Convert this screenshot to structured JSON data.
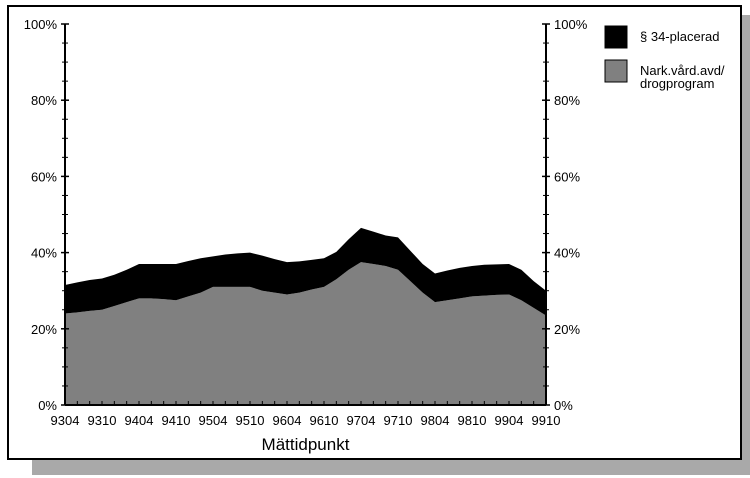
{
  "colors": {
    "paragraph34": "#000000",
    "narkvard": "#808080",
    "frame_shadow": "#a9a9a9"
  },
  "chart_data": {
    "type": "area",
    "stacked": true,
    "xlabel": "Mättidpunkt",
    "ylabel": "",
    "y_axis": "both-sides",
    "ylim": [
      0,
      100
    ],
    "y_ticks": [
      "0%",
      "20%",
      "40%",
      "60%",
      "80%",
      "100%"
    ],
    "x": [
      "9304",
      "9306",
      "9308",
      "9310",
      "9312",
      "9402",
      "9404",
      "9406",
      "9408",
      "9410",
      "9412",
      "9502",
      "9504",
      "9506",
      "9508",
      "9510",
      "9512",
      "9602",
      "9604",
      "9606",
      "9608",
      "9610",
      "9612",
      "9702",
      "9704",
      "9706",
      "9708",
      "9710",
      "9712",
      "9802",
      "9804",
      "9806",
      "9808",
      "9810",
      "9812",
      "9902",
      "9904",
      "9906",
      "9908",
      "9910"
    ],
    "x_tick_labels": [
      "9304",
      "9310",
      "9404",
      "9410",
      "9504",
      "9510",
      "9604",
      "9610",
      "9704",
      "9710",
      "9804",
      "9810",
      "9904",
      "9910"
    ],
    "series": [
      {
        "name": "Nark.vård.avd/ drogprogram",
        "color": "#808080",
        "values": [
          24,
          24.3,
          24.7,
          25,
          26,
          27,
          28,
          28,
          27.8,
          27.5,
          28.5,
          29.5,
          31,
          31,
          31,
          31,
          30,
          29.5,
          29,
          29.5,
          30.3,
          31,
          33,
          35.5,
          37.5,
          37,
          36.5,
          35.5,
          32.5,
          29.5,
          27,
          27.5,
          28,
          28.5,
          28.7,
          28.9,
          29,
          27.5,
          25.5,
          23.5
        ]
      },
      {
        "name": "§ 34-placerad",
        "color": "#000000",
        "values": [
          7.5,
          7.9,
          8.1,
          8.2,
          8.2,
          8.5,
          9,
          9,
          9.2,
          9.5,
          9.3,
          9,
          8,
          8.5,
          8.8,
          9,
          9.2,
          8.8,
          8.5,
          8.2,
          7.8,
          7.5,
          7.2,
          8,
          9,
          8.5,
          8,
          8.5,
          8,
          7.5,
          7.5,
          7.8,
          8,
          8,
          8.1,
          8,
          8,
          8,
          7,
          6.5
        ]
      }
    ],
    "legend": {
      "position": "right",
      "items": [
        {
          "lines": [
            "§ 34-placerad"
          ],
          "color": "#000000"
        },
        {
          "lines": [
            "Nark.vård.avd/",
            "drogprogram"
          ],
          "color": "#808080"
        }
      ]
    },
    "grid": false
  }
}
